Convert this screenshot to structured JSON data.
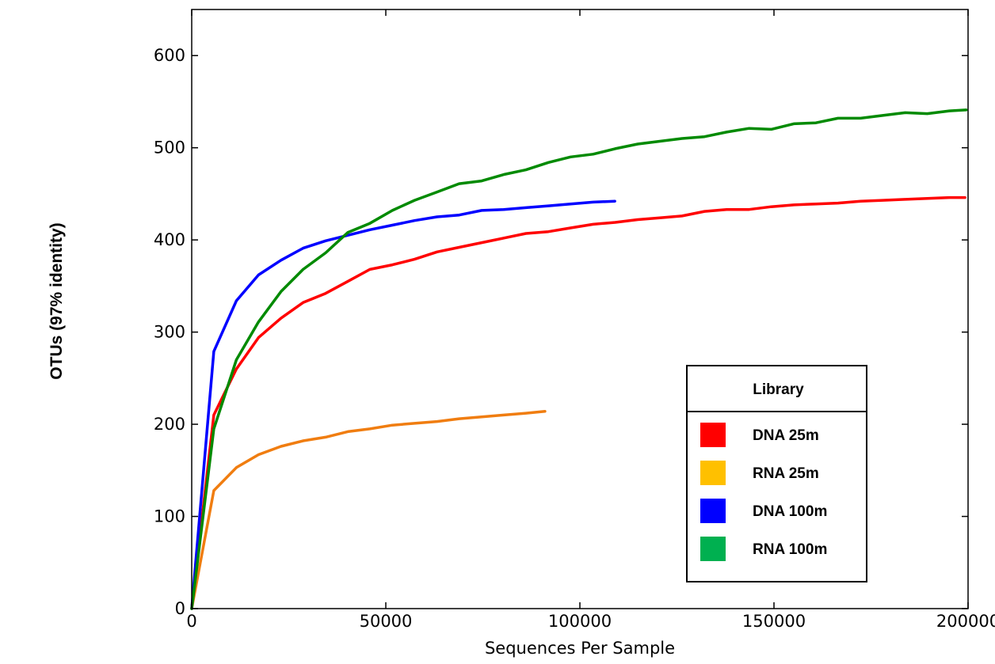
{
  "chart_data": {
    "type": "line",
    "title": "",
    "xlabel": "Sequences Per Sample",
    "ylabel": "OTUs (97% identity)",
    "xlim": [
      0,
      200000
    ],
    "ylim": [
      0,
      650
    ],
    "x_ticks": [
      0,
      50000,
      100000,
      150000,
      200000
    ],
    "x_tick_labels": [
      "0",
      "50000",
      "100000",
      "150000",
      "200000"
    ],
    "y_ticks": [
      0,
      100,
      200,
      300,
      400,
      500,
      600
    ],
    "y_tick_labels": [
      "0",
      "100",
      "200",
      "300",
      "400",
      "500",
      "600"
    ],
    "grid": false,
    "legend": {
      "title": "Library",
      "position": "bottom-right",
      "entries": [
        {
          "label": "DNA 25m",
          "color": "#ff0000"
        },
        {
          "label": "RNA 25m",
          "color": "#ffc000"
        },
        {
          "label": "DNA 100m",
          "color": "#0000ff"
        },
        {
          "label": "RNA 100m",
          "color": "#00b050"
        }
      ]
    },
    "series": [
      {
        "name": "DNA 25m",
        "color": "#ff0000",
        "points": [
          [
            0,
            0
          ],
          [
            5700,
            210
          ],
          [
            11500,
            260
          ],
          [
            17200,
            294
          ],
          [
            23000,
            315
          ],
          [
            28700,
            332
          ],
          [
            34500,
            342
          ],
          [
            40200,
            355
          ],
          [
            45900,
            368
          ],
          [
            51700,
            373
          ],
          [
            57400,
            379
          ],
          [
            63200,
            387
          ],
          [
            68900,
            392
          ],
          [
            74700,
            397
          ],
          [
            80400,
            402
          ],
          [
            86100,
            407
          ],
          [
            91900,
            409
          ],
          [
            97600,
            413
          ],
          [
            103400,
            417
          ],
          [
            109100,
            419
          ],
          [
            114900,
            422
          ],
          [
            120600,
            424
          ],
          [
            126300,
            426
          ],
          [
            132100,
            431
          ],
          [
            137800,
            433
          ],
          [
            143600,
            433
          ],
          [
            149300,
            436
          ],
          [
            155100,
            438
          ],
          [
            160800,
            439
          ],
          [
            166500,
            440
          ],
          [
            172300,
            442
          ],
          [
            178000,
            443
          ],
          [
            183800,
            444
          ],
          [
            189500,
            445
          ],
          [
            195200,
            446
          ],
          [
            199200,
            446
          ]
        ]
      },
      {
        "name": "RNA 25m",
        "color": "#f07d10",
        "points": [
          [
            0,
            0
          ],
          [
            5700,
            128
          ],
          [
            11500,
            153
          ],
          [
            17200,
            167
          ],
          [
            23000,
            176
          ],
          [
            28700,
            182
          ],
          [
            34500,
            186
          ],
          [
            40200,
            192
          ],
          [
            45900,
            195
          ],
          [
            51700,
            199
          ],
          [
            57400,
            201
          ],
          [
            63200,
            203
          ],
          [
            68900,
            206
          ],
          [
            74700,
            208
          ],
          [
            80400,
            210
          ],
          [
            86100,
            212
          ],
          [
            91000,
            214
          ]
        ]
      },
      {
        "name": "DNA 100m",
        "color": "#0000ff",
        "points": [
          [
            0,
            0
          ],
          [
            5700,
            279
          ],
          [
            11500,
            334
          ],
          [
            17200,
            362
          ],
          [
            23000,
            378
          ],
          [
            28700,
            391
          ],
          [
            34500,
            399
          ],
          [
            40200,
            405
          ],
          [
            45900,
            411
          ],
          [
            51700,
            416
          ],
          [
            57400,
            421
          ],
          [
            63200,
            425
          ],
          [
            68900,
            427
          ],
          [
            74700,
            432
          ],
          [
            80400,
            433
          ],
          [
            86100,
            435
          ],
          [
            91900,
            437
          ],
          [
            97600,
            439
          ],
          [
            103400,
            441
          ],
          [
            109000,
            442
          ]
        ]
      },
      {
        "name": "RNA 100m",
        "color": "#008a00",
        "points": [
          [
            0,
            0
          ],
          [
            5700,
            195
          ],
          [
            11500,
            270
          ],
          [
            17200,
            311
          ],
          [
            23000,
            344
          ],
          [
            28700,
            368
          ],
          [
            34500,
            386
          ],
          [
            40200,
            408
          ],
          [
            45900,
            418
          ],
          [
            51700,
            432
          ],
          [
            57400,
            443
          ],
          [
            63200,
            452
          ],
          [
            68900,
            461
          ],
          [
            74700,
            464
          ],
          [
            80400,
            471
          ],
          [
            86100,
            476
          ],
          [
            91900,
            484
          ],
          [
            97600,
            490
          ],
          [
            103400,
            493
          ],
          [
            109100,
            499
          ],
          [
            114900,
            504
          ],
          [
            120600,
            507
          ],
          [
            126300,
            510
          ],
          [
            132100,
            512
          ],
          [
            137800,
            517
          ],
          [
            143600,
            521
          ],
          [
            149300,
            520
          ],
          [
            155100,
            526
          ],
          [
            160800,
            527
          ],
          [
            166500,
            532
          ],
          [
            172300,
            532
          ],
          [
            178000,
            535
          ],
          [
            183800,
            538
          ],
          [
            189500,
            537
          ],
          [
            195200,
            540
          ],
          [
            199500,
            541
          ]
        ]
      }
    ]
  }
}
